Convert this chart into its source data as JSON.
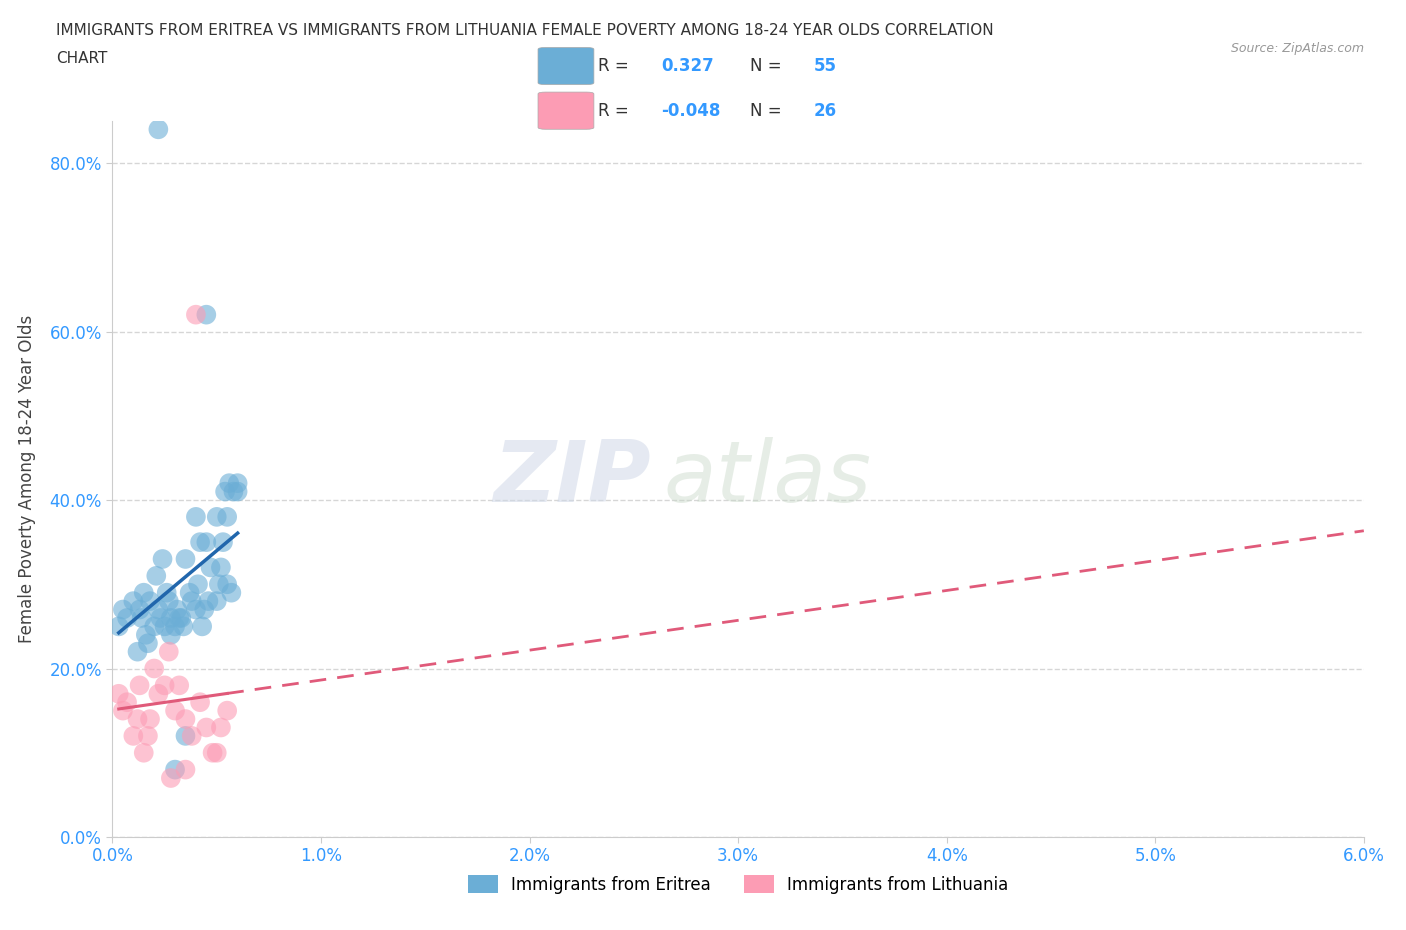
{
  "title_line1": "IMMIGRANTS FROM ERITREA VS IMMIGRANTS FROM LITHUANIA FEMALE POVERTY AMONG 18-24 YEAR OLDS CORRELATION",
  "title_line2": "CHART",
  "source": "Source: ZipAtlas.com",
  "ylabel": "Female Poverty Among 18-24 Year Olds",
  "legend_label_1": "Immigrants from Eritrea",
  "legend_label_2": "Immigrants from Lithuania",
  "R1": 0.327,
  "N1": 55,
  "R2": -0.048,
  "N2": 26,
  "color_eritrea": "#6baed6",
  "color_lithuania": "#fc9cb4",
  "color_eritrea_line": "#2166ac",
  "color_lithuania_line": "#e05a7a",
  "xlim": [
    0.0,
    0.06
  ],
  "ylim": [
    0.0,
    0.85
  ],
  "xticks": [
    0.0,
    0.01,
    0.02,
    0.03,
    0.04,
    0.05,
    0.06
  ],
  "xticklabels": [
    "0.0%",
    "1.0%",
    "2.0%",
    "3.0%",
    "4.0%",
    "5.0%",
    "6.0%"
  ],
  "yticks": [
    0.0,
    0.2,
    0.4,
    0.6,
    0.8
  ],
  "yticklabels": [
    "0.0%",
    "20.0%",
    "40.0%",
    "60.0%",
    "80.0%"
  ],
  "eritrea_x": [
    0.0003,
    0.0005,
    0.0007,
    0.001,
    0.0012,
    0.0013,
    0.0014,
    0.0015,
    0.0016,
    0.0017,
    0.0018,
    0.002,
    0.0021,
    0.0022,
    0.0023,
    0.0024,
    0.0025,
    0.0026,
    0.0027,
    0.0028,
    0.003,
    0.0031,
    0.0032,
    0.0033,
    0.0034,
    0.0035,
    0.0037,
    0.0038,
    0.004,
    0.0041,
    0.0042,
    0.0043,
    0.0044,
    0.0045,
    0.0046,
    0.0047,
    0.005,
    0.0051,
    0.0052,
    0.0053,
    0.0054,
    0.0055,
    0.0056,
    0.0057,
    0.0058,
    0.006,
    0.0022,
    0.0028,
    0.003,
    0.0035,
    0.004,
    0.0045,
    0.005,
    0.0055,
    0.006
  ],
  "eritrea_y": [
    0.25,
    0.27,
    0.26,
    0.28,
    0.22,
    0.27,
    0.26,
    0.29,
    0.24,
    0.23,
    0.28,
    0.25,
    0.31,
    0.27,
    0.26,
    0.33,
    0.25,
    0.29,
    0.28,
    0.24,
    0.25,
    0.27,
    0.26,
    0.26,
    0.25,
    0.33,
    0.29,
    0.28,
    0.38,
    0.3,
    0.35,
    0.25,
    0.27,
    0.35,
    0.28,
    0.32,
    0.28,
    0.3,
    0.32,
    0.35,
    0.41,
    0.38,
    0.42,
    0.29,
    0.41,
    0.41,
    0.84,
    0.26,
    0.08,
    0.12,
    0.27,
    0.62,
    0.38,
    0.3,
    0.42
  ],
  "lithuania_x": [
    0.0003,
    0.0005,
    0.0007,
    0.001,
    0.0012,
    0.0013,
    0.0015,
    0.0017,
    0.0018,
    0.002,
    0.0022,
    0.0025,
    0.0027,
    0.003,
    0.0032,
    0.0035,
    0.0038,
    0.004,
    0.0042,
    0.0045,
    0.0048,
    0.005,
    0.0052,
    0.0055,
    0.0028,
    0.0035
  ],
  "lithuania_y": [
    0.17,
    0.15,
    0.16,
    0.12,
    0.14,
    0.18,
    0.1,
    0.12,
    0.14,
    0.2,
    0.17,
    0.18,
    0.22,
    0.15,
    0.18,
    0.14,
    0.12,
    0.62,
    0.16,
    0.13,
    0.1,
    0.1,
    0.13,
    0.15,
    0.07,
    0.08
  ],
  "watermark_zip": "ZIP",
  "watermark_atlas": "atlas",
  "background_color": "#ffffff",
  "grid_color": "#cccccc"
}
